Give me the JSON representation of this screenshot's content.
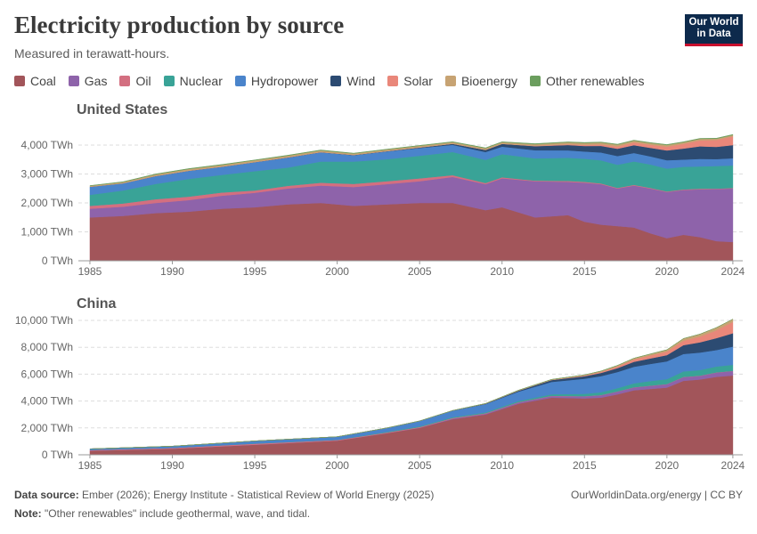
{
  "title": "Electricity production by source",
  "subtitle": "Measured in terawatt-hours.",
  "logo": {
    "line1": "Our World",
    "line2": "in Data"
  },
  "footer": {
    "source_label": "Data source:",
    "source_text": "Ember (2026); Energy Institute - Statistical Review of World Energy (2025)",
    "note_label": "Note:",
    "note_text": "\"Other renewables\" include geothermal, wave, and tidal.",
    "right": "OurWorldinData.org/energy | CC BY"
  },
  "legend": [
    {
      "name": "Coal",
      "color": "#a2555a"
    },
    {
      "name": "Gas",
      "color": "#8e63aa"
    },
    {
      "name": "Oil",
      "color": "#d36f80"
    },
    {
      "name": "Nuclear",
      "color": "#39a397"
    },
    {
      "name": "Hydropower",
      "color": "#4a84cb"
    },
    {
      "name": "Wind",
      "color": "#2c4b72"
    },
    {
      "name": "Solar",
      "color": "#e9877a"
    },
    {
      "name": "Bioenergy",
      "color": "#c7a373"
    },
    {
      "name": "Other renewables",
      "color": "#6b9e5e"
    }
  ],
  "chart_data": [
    {
      "type": "area",
      "stacked": true,
      "title": "United States",
      "x": [
        1985,
        1987,
        1989,
        1991,
        1993,
        1995,
        1997,
        1999,
        2001,
        2003,
        2005,
        2007,
        2009,
        2010,
        2012,
        2014,
        2015,
        2016,
        2017,
        2018,
        2019,
        2020,
        2021,
        2022,
        2023,
        2024
      ],
      "xticks": [
        1985,
        1990,
        1995,
        2000,
        2005,
        2010,
        2015,
        2020,
        2024
      ],
      "yticks": [
        0,
        1000,
        2000,
        3000,
        4000
      ],
      "ytick_labels": [
        "0 TWh",
        "1,000 TWh",
        "2,000 TWh",
        "3,000 TWh",
        "4,000 TWh"
      ],
      "ylim": [
        0,
        4400
      ],
      "series": [
        {
          "name": "Coal",
          "values": [
            1500,
            1550,
            1650,
            1700,
            1800,
            1850,
            1950,
            2000,
            1900,
            1950,
            2000,
            2000,
            1750,
            1850,
            1500,
            1580,
            1350,
            1250,
            1200,
            1150,
            950,
            780,
            900,
            820,
            680,
            650
          ]
        },
        {
          "name": "Gas",
          "values": [
            300,
            320,
            350,
            400,
            450,
            500,
            550,
            600,
            650,
            700,
            750,
            900,
            900,
            1000,
            1250,
            1150,
            1350,
            1400,
            1300,
            1450,
            1550,
            1600,
            1550,
            1650,
            1800,
            1850
          ]
        },
        {
          "name": "Oil",
          "values": [
            100,
            110,
            130,
            120,
            110,
            80,
            90,
            100,
            110,
            100,
            100,
            60,
            40,
            37,
            23,
            30,
            28,
            24,
            21,
            25,
            19,
            17,
            19,
            23,
            16,
            16
          ]
        },
        {
          "name": "Nuclear",
          "values": [
            380,
            450,
            530,
            610,
            610,
            670,
            630,
            730,
            770,
            760,
            780,
            800,
            800,
            800,
            770,
            800,
            800,
            800,
            800,
            810,
            810,
            790,
            780,
            770,
            780,
            780
          ]
        },
        {
          "name": "Hydropower",
          "values": [
            280,
            250,
            270,
            280,
            280,
            310,
            350,
            320,
            220,
            270,
            270,
            250,
            270,
            260,
            280,
            260,
            250,
            270,
            300,
            290,
            280,
            290,
            250,
            260,
            240,
            250
          ]
        },
        {
          "name": "Wind",
          "values": [
            0,
            0,
            2,
            3,
            3,
            3,
            3,
            5,
            7,
            11,
            18,
            35,
            74,
            95,
            141,
            182,
            191,
            227,
            254,
            273,
            295,
            338,
            380,
            434,
            421,
            453
          ]
        },
        {
          "name": "Solar",
          "values": [
            0,
            0,
            0,
            0,
            0,
            0,
            1,
            1,
            1,
            1,
            1,
            1,
            1,
            2,
            10,
            28,
            39,
            55,
            77,
            93,
            108,
            132,
            164,
            205,
            238,
            303
          ]
        },
        {
          "name": "Bioenergy",
          "values": [
            30,
            40,
            55,
            60,
            60,
            60,
            60,
            60,
            50,
            55,
            55,
            55,
            55,
            56,
            58,
            64,
            64,
            63,
            63,
            63,
            58,
            55,
            54,
            52,
            47,
            47
          ]
        },
        {
          "name": "Other renewables",
          "values": [
            10,
            11,
            15,
            16,
            17,
            14,
            14,
            15,
            13,
            13,
            15,
            15,
            15,
            15,
            16,
            16,
            16,
            16,
            16,
            15,
            16,
            17,
            16,
            16,
            16,
            16
          ]
        }
      ]
    },
    {
      "type": "area",
      "stacked": true,
      "title": "China",
      "x": [
        1985,
        1990,
        1995,
        2000,
        2003,
        2005,
        2007,
        2009,
        2011,
        2013,
        2015,
        2016,
        2017,
        2018,
        2019,
        2020,
        2021,
        2022,
        2023,
        2024
      ],
      "xticks": [
        1985,
        1990,
        1995,
        2000,
        2005,
        2010,
        2015,
        2020,
        2024
      ],
      "yticks": [
        0,
        2000,
        4000,
        6000,
        8000,
        10000
      ],
      "ytick_labels": [
        "0 TWh",
        "2,000 TWh",
        "4,000 TWh",
        "6,000 TWh",
        "8,000 TWh",
        "10,000 TWh"
      ],
      "ylim": [
        0,
        10000
      ],
      "series": [
        {
          "name": "Coal",
          "values": [
            300,
            450,
            750,
            1050,
            1600,
            2000,
            2650,
            3000,
            3800,
            4250,
            4200,
            4250,
            4500,
            4800,
            4900,
            5000,
            5500,
            5600,
            5800,
            5900
          ]
        },
        {
          "name": "Gas",
          "values": [
            5,
            5,
            8,
            10,
            15,
            20,
            50,
            60,
            100,
            120,
            150,
            180,
            200,
            210,
            230,
            250,
            280,
            270,
            320,
            330
          ]
        },
        {
          "name": "Oil",
          "values": [
            50,
            60,
            70,
            45,
            50,
            45,
            40,
            30,
            20,
            20,
            15,
            15,
            15,
            15,
            15,
            15,
            15,
            15,
            15,
            15
          ]
        },
        {
          "name": "Nuclear",
          "values": [
            0,
            0,
            12,
            17,
            43,
            53,
            62,
            70,
            86,
            111,
            171,
            213,
            248,
            295,
            348,
            366,
            408,
            418,
            435,
            451
          ]
        },
        {
          "name": "Hydropower",
          "values": [
            90,
            125,
            190,
            222,
            283,
            397,
            485,
            616,
            699,
            920,
            1126,
            1193,
            1194,
            1232,
            1270,
            1322,
            1300,
            1303,
            1226,
            1354
          ]
        },
        {
          "name": "Wind",
          "values": [
            0,
            0,
            0,
            1,
            1,
            2,
            6,
            28,
            70,
            141,
            186,
            241,
            295,
            366,
            406,
            467,
            656,
            763,
            886,
            997
          ]
        },
        {
          "name": "Solar",
          "values": [
            0,
            0,
            0,
            0,
            0,
            0,
            0,
            0,
            3,
            9,
            45,
            75,
            118,
            177,
            225,
            261,
            327,
            427,
            584,
            839
          ]
        },
        {
          "name": "Bioenergy",
          "values": [
            0,
            0,
            0,
            2,
            5,
            5,
            8,
            20,
            31,
            40,
            53,
            65,
            80,
            91,
            112,
            135,
            164,
            184,
            196,
            208
          ]
        },
        {
          "name": "Other renewables",
          "values": [
            0,
            0,
            0,
            0,
            0,
            0,
            0,
            0,
            0,
            0,
            0,
            0,
            0,
            0,
            0,
            0,
            1,
            1,
            1,
            1
          ]
        }
      ]
    }
  ]
}
